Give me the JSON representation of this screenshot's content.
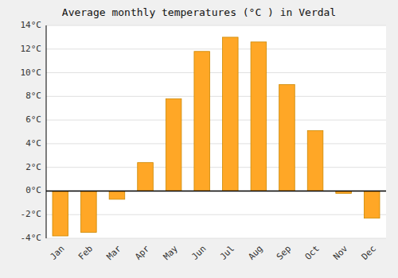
{
  "chart_data": {
    "type": "bar",
    "title": "Average monthly temperatures (°C ) in Verdal",
    "categories": [
      "Jan",
      "Feb",
      "Mar",
      "Apr",
      "May",
      "Jun",
      "Jul",
      "Aug",
      "Sep",
      "Oct",
      "Nov",
      "Dec"
    ],
    "values": [
      -3.8,
      -3.5,
      -0.7,
      2.4,
      7.8,
      11.8,
      13.0,
      12.6,
      9.0,
      5.1,
      -0.2,
      -2.3
    ],
    "color": "#FFA726",
    "ylim": [
      -4,
      14
    ],
    "yticks": [
      {
        "value": -4,
        "label": "-4°C"
      },
      {
        "value": -2,
        "label": "-2°C"
      },
      {
        "value": 0,
        "label": "0°C"
      },
      {
        "value": 2,
        "label": "2°C"
      },
      {
        "value": 4,
        "label": "4°C"
      },
      {
        "value": 6,
        "label": "6°C"
      },
      {
        "value": 8,
        "label": "8°C"
      },
      {
        "value": 10,
        "label": "10°C"
      },
      {
        "value": 12,
        "label": "12°C"
      },
      {
        "value": 14,
        "label": "14°C"
      }
    ],
    "grid": true
  }
}
